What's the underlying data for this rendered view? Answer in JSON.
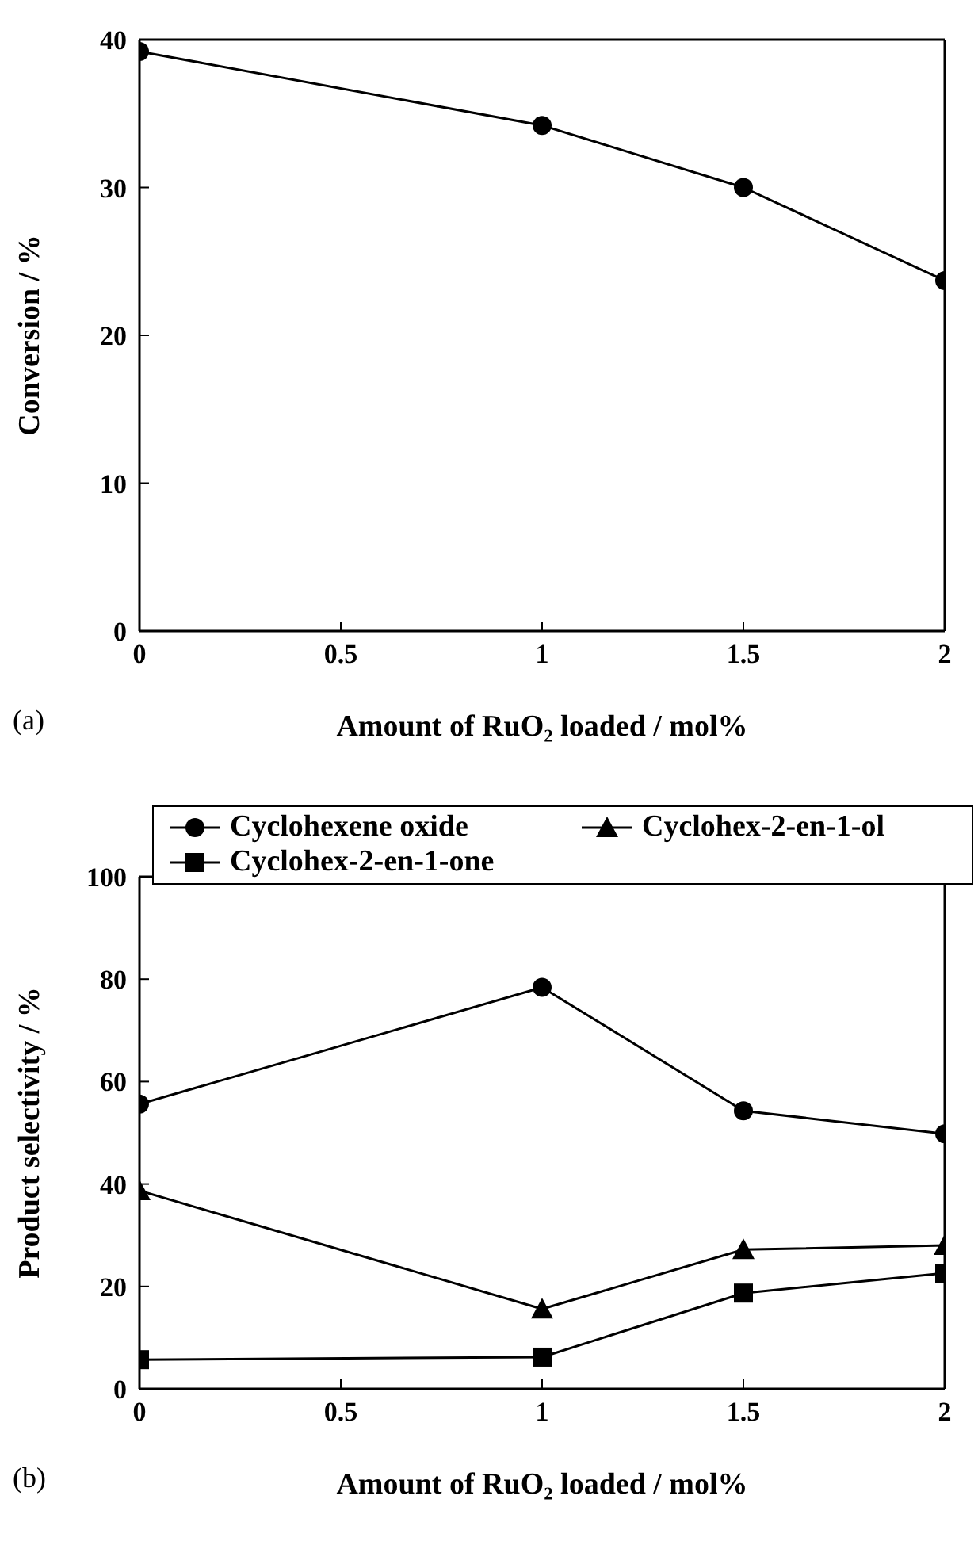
{
  "chart_data": [
    {
      "type": "line",
      "xlabel": "Amount of RuO₂ loaded / mol%",
      "ylabel": "Conversion / %",
      "annotations": [
        "(a)"
      ],
      "x": [
        0,
        1,
        1.5,
        2
      ],
      "xlim": [
        0,
        2
      ],
      "xticks": [
        0,
        0.5,
        1,
        1.5,
        2
      ],
      "ylim": [
        0,
        40
      ],
      "yticks": [
        0,
        10,
        20,
        30,
        40
      ],
      "grid": false,
      "legend": false,
      "marker": "circle",
      "line_style": "solid",
      "series": [
        {
          "color": "#000000",
          "values": [
            39.2,
            34.2,
            30.0,
            23.7
          ]
        }
      ]
    },
    {
      "type": "line",
      "xlabel": "Amount of RuO₂ loaded / mol%",
      "ylabel": "Product selectivity / %",
      "annotations": [
        "(b)"
      ],
      "x": [
        0,
        1,
        1.5,
        2
      ],
      "xlim": [
        0,
        2
      ],
      "xticks": [
        0,
        0.5,
        1,
        1.5,
        2
      ],
      "ylim": [
        0,
        100
      ],
      "yticks": [
        0,
        20,
        40,
        60,
        80,
        100
      ],
      "grid": false,
      "legend": "top",
      "line_style": "solid",
      "series": [
        {
          "name": "Cyclohexene oxide",
          "color": "#000000",
          "marker": "circle",
          "values": [
            55.6,
            78.4,
            54.3,
            49.8
          ]
        },
        {
          "name": "Cyclohex-2-en-1-ol",
          "color": "#000000",
          "marker": "triangle",
          "values": [
            38.7,
            15.6,
            27.2,
            28.0
          ]
        },
        {
          "name": "Cyclohex-2-en-1-one",
          "color": "#000000",
          "marker": "square",
          "values": [
            5.7,
            6.2,
            18.7,
            22.6
          ]
        }
      ]
    }
  ]
}
